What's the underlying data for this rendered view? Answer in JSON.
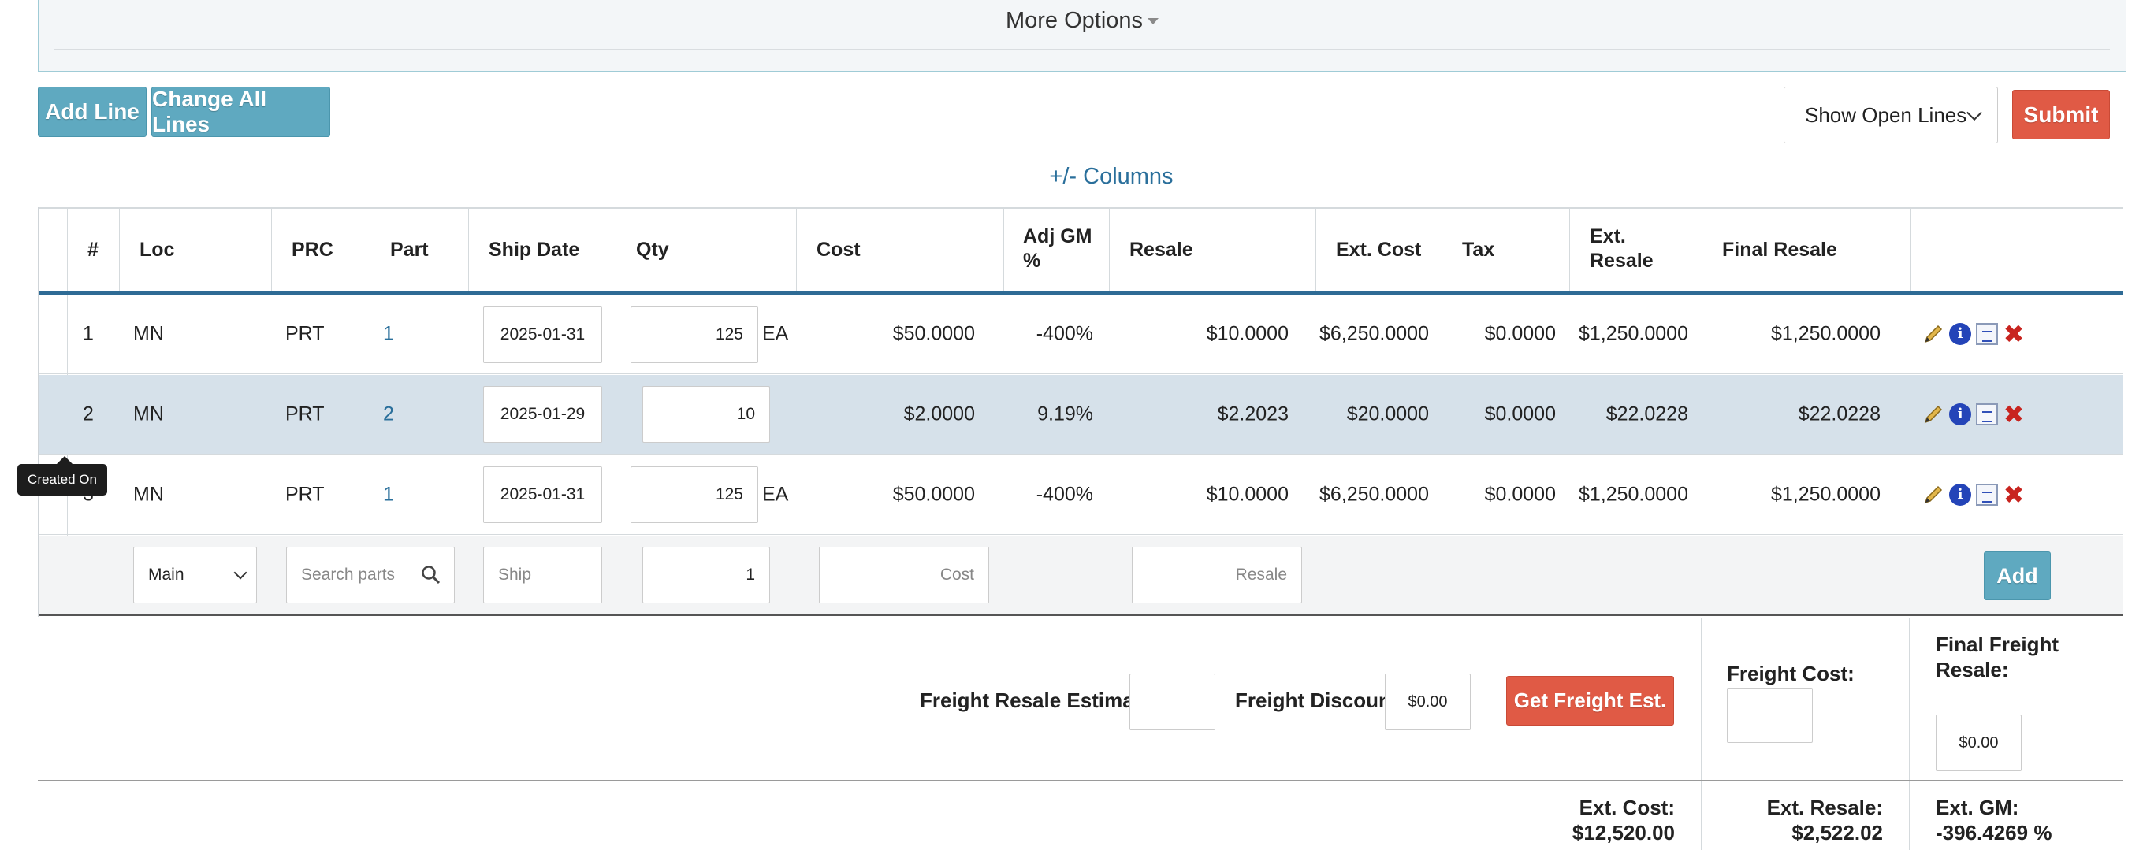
{
  "more_options": {
    "label": "More Options"
  },
  "toolbar": {
    "add_line": "Add Line",
    "change_all_lines": "Change All Lines",
    "line_filter": "Show Open Lines",
    "submit": "Submit"
  },
  "columns_toggle": "+/- Columns",
  "table": {
    "headers": {
      "num": "#",
      "loc": "Loc",
      "prc": "PRC",
      "part": "Part",
      "ship_date": "Ship Date",
      "qty": "Qty",
      "cost": "Cost",
      "adj_gm_1": "Adj GM",
      "adj_gm_2": "%",
      "resale": "Resale",
      "ext_cost": "Ext. Cost",
      "tax": "Tax",
      "ext_resale_1": "Ext.",
      "ext_resale_2": "Resale",
      "final_resale": "Final Resale"
    },
    "rows": [
      {
        "num": "1",
        "loc": "MN",
        "prc": "PRT",
        "part": "1",
        "ship_date": "2025-01-31",
        "qty": "125",
        "uom": "EA",
        "cost": "$50.0000",
        "adj_gm": "-400%",
        "resale": "$10.0000",
        "ext_cost": "$6,250.0000",
        "tax": "$0.0000",
        "ext_resale": "$1,250.0000",
        "final_resale": "$1,250.0000"
      },
      {
        "num": "2",
        "loc": "MN",
        "prc": "PRT",
        "part": "2",
        "ship_date": "2025-01-29",
        "qty": "10",
        "uom": "",
        "cost": "$2.0000",
        "adj_gm": "9.19%",
        "resale": "$2.2023",
        "ext_cost": "$20.0000",
        "tax": "$0.0000",
        "ext_resale": "$22.0228",
        "final_resale": "$22.0228"
      },
      {
        "num": "3",
        "loc": "MN",
        "prc": "PRT",
        "part": "1",
        "ship_date": "2025-01-31",
        "qty": "125",
        "uom": "EA",
        "cost": "$50.0000",
        "adj_gm": "-400%",
        "resale": "$10.0000",
        "ext_cost": "$6,250.0000",
        "tax": "$0.0000",
        "ext_resale": "$1,250.0000",
        "final_resale": "$1,250.0000"
      }
    ],
    "new_line": {
      "location": "Main",
      "search_placeholder": "Search parts",
      "ship_placeholder": "Ship",
      "qty": "1",
      "cost_placeholder": "Cost",
      "resale_placeholder": "Resale",
      "add": "Add"
    }
  },
  "tooltip": "Created On",
  "freight": {
    "resale_estimate_label": "Freight Resale Estimate:",
    "resale_estimate_value": "",
    "discount_label": "Freight Discount:",
    "discount_value": "$0.00",
    "get_estimate": "Get Freight Est.",
    "cost_label": "Freight Cost:",
    "cost_value": "",
    "final_label_1": "Final Freight",
    "final_label_2": "Resale:",
    "final_value": "$0.00"
  },
  "totals": {
    "ext_cost_label": "Ext. Cost:",
    "ext_cost_value": "$12,520.00",
    "ext_resale_label": "Ext. Resale:",
    "ext_resale_value": "$2,522.02",
    "ext_gm_label": "Ext. GM:",
    "ext_gm_value": "-396.4269 %"
  },
  "colors": {
    "accent": "#5fa9c0",
    "danger": "#e05a45",
    "header_rule": "#2e6b95",
    "link": "#2a6f9b",
    "row_highlight": "#d6e1ea"
  }
}
